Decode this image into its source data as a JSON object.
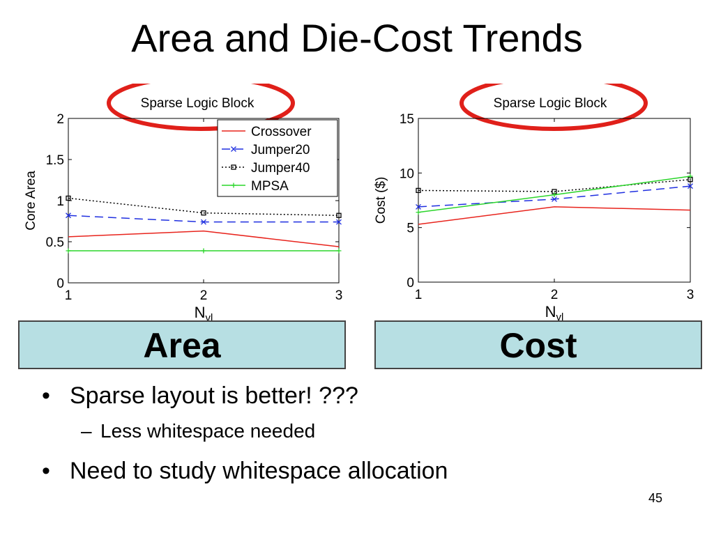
{
  "slide": {
    "title": "Area and Die-Cost Trends",
    "page_number": "45",
    "bullets": [
      {
        "text": "Sparse layout is better!  ???",
        "sub": [
          "Less whitespace needed"
        ]
      },
      {
        "text": "Need to study whitespace allocation",
        "sub": []
      }
    ]
  },
  "labels": {
    "area": "Area",
    "cost": "Cost"
  },
  "colors": {
    "crossover": "#e8231c",
    "jumper20": "#1f2fe0",
    "jumper40": "#000000",
    "mpsa": "#2ad52a",
    "highlight_ellipse": "#e0201a",
    "label_box_fill": "#b7dfe3"
  },
  "chart_data": [
    {
      "type": "line",
      "title": "Sparse Logic Block",
      "xlabel": "N",
      "xlabel_sub": "vl",
      "ylabel": "Core Area",
      "x": [
        1,
        2,
        3
      ],
      "xlim": [
        1,
        3
      ],
      "ylim": [
        0,
        2
      ],
      "yticks": [
        "0",
        "0.5",
        "1",
        "1.5",
        "2"
      ],
      "xticks": [
        "1",
        "2",
        "3"
      ],
      "grid": false,
      "legend": "top-right",
      "series": [
        {
          "name": "Crossover",
          "values": [
            0.56,
            0.63,
            0.44
          ]
        },
        {
          "name": "Jumper20",
          "values": [
            0.82,
            0.74,
            0.74
          ]
        },
        {
          "name": "Jumper40",
          "values": [
            1.03,
            0.85,
            0.82
          ]
        },
        {
          "name": "MPSA",
          "values": [
            0.39,
            0.39,
            0.39
          ]
        }
      ]
    },
    {
      "type": "line",
      "title": "Sparse Logic Block",
      "xlabel": "N",
      "xlabel_sub": "vl",
      "ylabel": "Cost ($)",
      "x": [
        1,
        2,
        3
      ],
      "xlim": [
        1,
        3
      ],
      "ylim": [
        0,
        15
      ],
      "yticks": [
        "0",
        "5",
        "10",
        "15"
      ],
      "xticks": [
        "1",
        "2",
        "3"
      ],
      "grid": false,
      "legend": "none",
      "series": [
        {
          "name": "Crossover",
          "values": [
            5.3,
            6.9,
            6.6
          ]
        },
        {
          "name": "Jumper20",
          "values": [
            6.9,
            7.6,
            8.8
          ]
        },
        {
          "name": "Jumper40",
          "values": [
            8.4,
            8.3,
            9.4
          ]
        },
        {
          "name": "MPSA",
          "values": [
            6.4,
            8.0,
            9.7
          ]
        }
      ]
    }
  ]
}
